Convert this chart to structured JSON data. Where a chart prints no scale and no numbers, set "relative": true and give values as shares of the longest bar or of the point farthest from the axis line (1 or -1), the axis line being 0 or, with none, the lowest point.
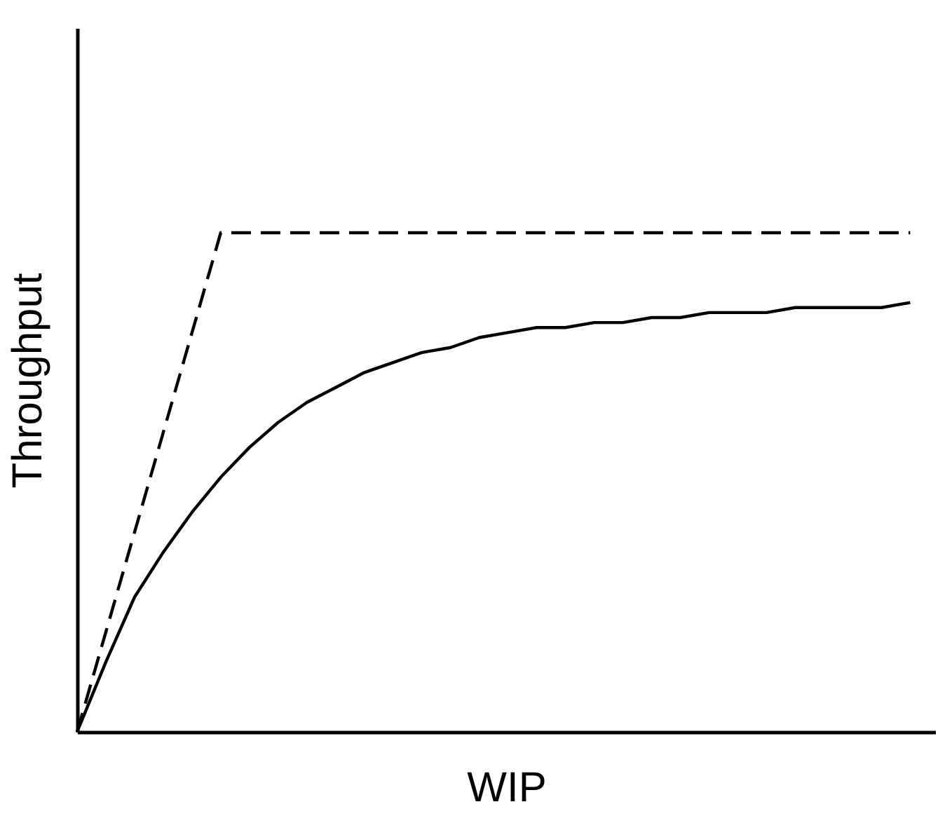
{
  "chart_data": {
    "type": "line",
    "relative": true,
    "xlabel": "WIP",
    "ylabel": "Throughput",
    "grid": false,
    "marker": "none",
    "categories": [
      null,
      null,
      null,
      null,
      null,
      null,
      null,
      null,
      null,
      null,
      null,
      null,
      null,
      null,
      null,
      null,
      null,
      null,
      null,
      null,
      null,
      null,
      null,
      null,
      null,
      null,
      null,
      null,
      null,
      null
    ],
    "series": [
      {
        "color": "#000000",
        "line_style": "dashed",
        "values": [
          0,
          0.2,
          0.4,
          0.6,
          0.8,
          1,
          1,
          1,
          1,
          1,
          1,
          1,
          1,
          1,
          1,
          1,
          1,
          1,
          1,
          1,
          1,
          1,
          1,
          1,
          1,
          1,
          1,
          1,
          1,
          1
        ]
      },
      {
        "color": "#000000",
        "line_style": "solid",
        "values": [
          0,
          0.14,
          0.27,
          0.36,
          0.44,
          0.51,
          0.57,
          0.62,
          0.66,
          0.69,
          0.72,
          0.74,
          0.76,
          0.77,
          0.79,
          0.8,
          0.81,
          0.81,
          0.82,
          0.82,
          0.83,
          0.83,
          0.84,
          0.84,
          0.84,
          0.85,
          0.85,
          0.85,
          0.85,
          0.86
        ]
      }
    ]
  }
}
